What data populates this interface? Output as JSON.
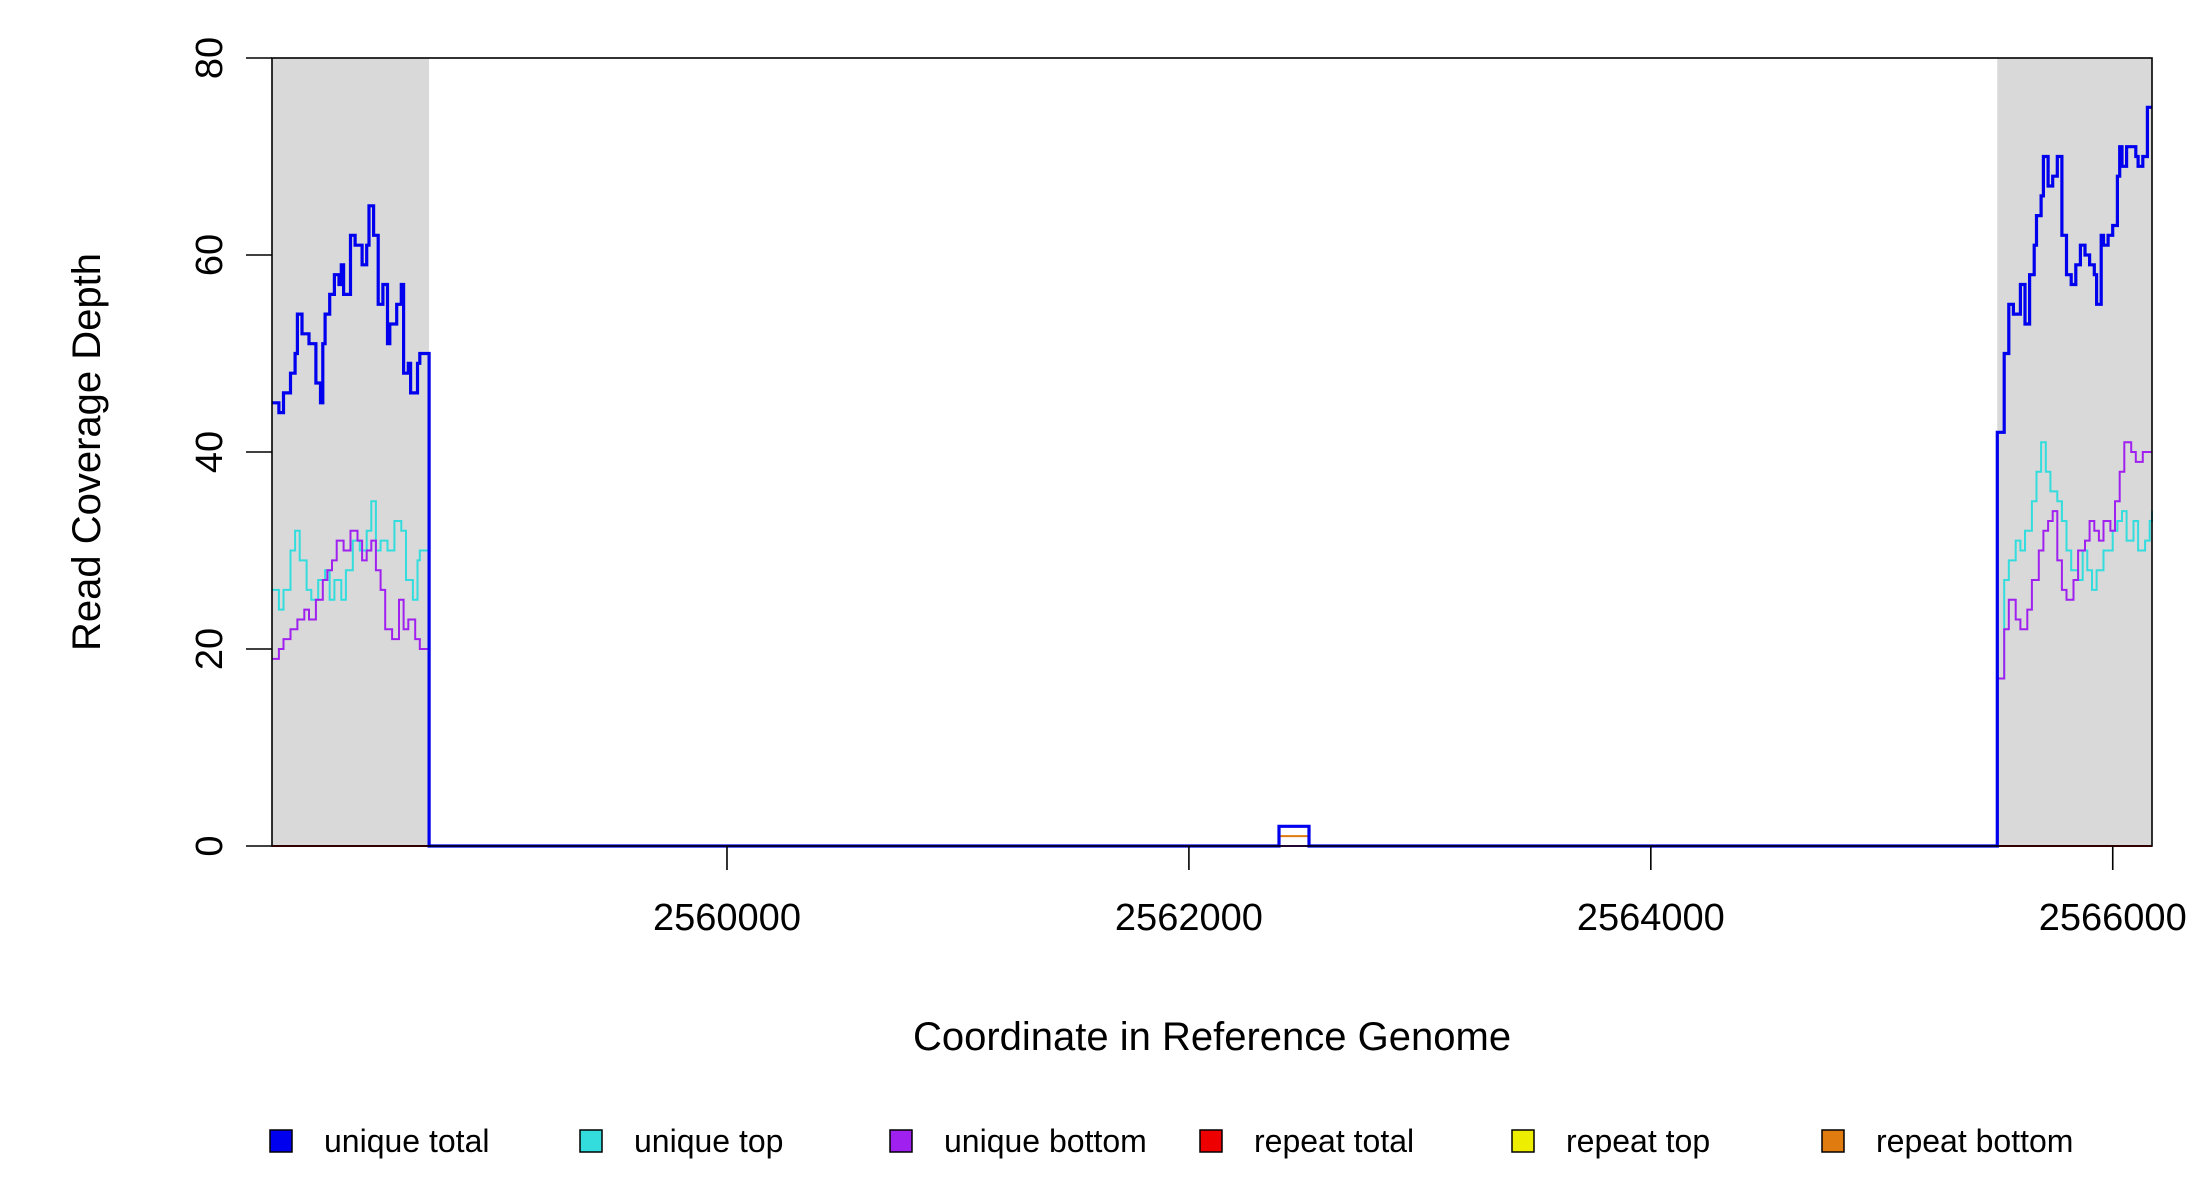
{
  "chart_data": {
    "type": "line",
    "title": "",
    "xlabel": "Coordinate in Reference Genome",
    "ylabel": "Read Coverage Depth",
    "xlim": [
      2558030,
      2566170
    ],
    "ylim": [
      0,
      80
    ],
    "x_ticks": [
      2560000,
      2562000,
      2564000,
      2566000
    ],
    "x_tick_labels": [
      "2560000",
      "2562000",
      "2564000",
      "2566000"
    ],
    "y_ticks": [
      0,
      20,
      40,
      60,
      80
    ],
    "y_tick_labels": [
      "0",
      "20",
      "40",
      "60",
      "80"
    ],
    "shaded_regions": [
      [
        2558030,
        2558710
      ],
      [
        2565500,
        2566170
      ]
    ],
    "shade_color": "#d9d9d9",
    "grid": false,
    "legend_position": "bottom",
    "series": [
      {
        "name": "unique total",
        "color": "#0000ee",
        "points": [
          [
            2558030,
            45
          ],
          [
            2558060,
            44
          ],
          [
            2558080,
            46
          ],
          [
            2558110,
            48
          ],
          [
            2558130,
            50
          ],
          [
            2558140,
            54
          ],
          [
            2558160,
            52
          ],
          [
            2558190,
            51
          ],
          [
            2558220,
            47
          ],
          [
            2558240,
            45
          ],
          [
            2558250,
            51
          ],
          [
            2558260,
            54
          ],
          [
            2558280,
            56
          ],
          [
            2558300,
            58
          ],
          [
            2558320,
            57
          ],
          [
            2558330,
            59
          ],
          [
            2558340,
            56
          ],
          [
            2558370,
            62
          ],
          [
            2558390,
            61
          ],
          [
            2558420,
            59
          ],
          [
            2558440,
            61
          ],
          [
            2558450,
            65
          ],
          [
            2558470,
            62
          ],
          [
            2558490,
            55
          ],
          [
            2558510,
            57
          ],
          [
            2558530,
            51
          ],
          [
            2558540,
            53
          ],
          [
            2558570,
            55
          ],
          [
            2558590,
            57
          ],
          [
            2558600,
            48
          ],
          [
            2558620,
            49
          ],
          [
            2558630,
            46
          ],
          [
            2558660,
            49
          ],
          [
            2558670,
            50
          ],
          [
            2558710,
            0
          ],
          [
            2562390,
            2
          ],
          [
            2562520,
            0
          ],
          [
            2565500,
            42
          ],
          [
            2565530,
            50
          ],
          [
            2565550,
            55
          ],
          [
            2565570,
            54
          ],
          [
            2565600,
            57
          ],
          [
            2565620,
            53
          ],
          [
            2565640,
            58
          ],
          [
            2565660,
            61
          ],
          [
            2565670,
            64
          ],
          [
            2565690,
            66
          ],
          [
            2565700,
            70
          ],
          [
            2565720,
            67
          ],
          [
            2565740,
            68
          ],
          [
            2565760,
            70
          ],
          [
            2565780,
            62
          ],
          [
            2565800,
            58
          ],
          [
            2565820,
            57
          ],
          [
            2565840,
            59
          ],
          [
            2565860,
            61
          ],
          [
            2565880,
            60
          ],
          [
            2565900,
            59
          ],
          [
            2565920,
            58
          ],
          [
            2565930,
            55
          ],
          [
            2565950,
            62
          ],
          [
            2565960,
            61
          ],
          [
            2565980,
            62
          ],
          [
            2566000,
            63
          ],
          [
            2566020,
            68
          ],
          [
            2566030,
            71
          ],
          [
            2566040,
            69
          ],
          [
            2566060,
            71
          ],
          [
            2566100,
            70
          ],
          [
            2566110,
            69
          ],
          [
            2566130,
            70
          ],
          [
            2566150,
            75
          ],
          [
            2566170,
            75
          ]
        ]
      },
      {
        "name": "unique top",
        "color": "#33dddd",
        "points": [
          [
            2558030,
            26
          ],
          [
            2558060,
            24
          ],
          [
            2558080,
            26
          ],
          [
            2558110,
            30
          ],
          [
            2558130,
            32
          ],
          [
            2558150,
            29
          ],
          [
            2558180,
            26
          ],
          [
            2558200,
            25
          ],
          [
            2558230,
            27
          ],
          [
            2558260,
            28
          ],
          [
            2558280,
            25
          ],
          [
            2558300,
            27
          ],
          [
            2558330,
            25
          ],
          [
            2558350,
            28
          ],
          [
            2558380,
            31
          ],
          [
            2558410,
            30
          ],
          [
            2558440,
            32
          ],
          [
            2558460,
            35
          ],
          [
            2558480,
            30
          ],
          [
            2558500,
            31
          ],
          [
            2558530,
            30
          ],
          [
            2558560,
            33
          ],
          [
            2558590,
            32
          ],
          [
            2558610,
            27
          ],
          [
            2558640,
            25
          ],
          [
            2558660,
            29
          ],
          [
            2558670,
            30
          ],
          [
            2558710,
            0
          ],
          [
            2565500,
            17
          ],
          [
            2565530,
            27
          ],
          [
            2565550,
            29
          ],
          [
            2565580,
            31
          ],
          [
            2565600,
            30
          ],
          [
            2565620,
            32
          ],
          [
            2565650,
            35
          ],
          [
            2565670,
            38
          ],
          [
            2565690,
            41
          ],
          [
            2565710,
            38
          ],
          [
            2565730,
            36
          ],
          [
            2565760,
            35
          ],
          [
            2565780,
            33
          ],
          [
            2565800,
            30
          ],
          [
            2565820,
            28
          ],
          [
            2565850,
            27
          ],
          [
            2565870,
            30
          ],
          [
            2565890,
            28
          ],
          [
            2565910,
            26
          ],
          [
            2565930,
            28
          ],
          [
            2565960,
            30
          ],
          [
            2565980,
            30
          ],
          [
            2566000,
            32
          ],
          [
            2566020,
            33
          ],
          [
            2566040,
            34
          ],
          [
            2566060,
            31
          ],
          [
            2566090,
            33
          ],
          [
            2566110,
            30
          ],
          [
            2566140,
            31
          ],
          [
            2566160,
            33
          ],
          [
            2566170,
            34
          ]
        ]
      },
      {
        "name": "unique bottom",
        "color": "#a020f0",
        "points": [
          [
            2558030,
            19
          ],
          [
            2558060,
            20
          ],
          [
            2558080,
            21
          ],
          [
            2558110,
            22
          ],
          [
            2558140,
            23
          ],
          [
            2558170,
            24
          ],
          [
            2558190,
            23
          ],
          [
            2558220,
            25
          ],
          [
            2558250,
            27
          ],
          [
            2558270,
            28
          ],
          [
            2558290,
            29
          ],
          [
            2558310,
            31
          ],
          [
            2558340,
            30
          ],
          [
            2558370,
            32
          ],
          [
            2558400,
            31
          ],
          [
            2558420,
            29
          ],
          [
            2558440,
            30
          ],
          [
            2558460,
            31
          ],
          [
            2558480,
            28
          ],
          [
            2558500,
            26
          ],
          [
            2558520,
            22
          ],
          [
            2558550,
            21
          ],
          [
            2558580,
            25
          ],
          [
            2558600,
            22
          ],
          [
            2558620,
            23
          ],
          [
            2558650,
            21
          ],
          [
            2558670,
            20
          ],
          [
            2558710,
            0
          ],
          [
            2565500,
            17
          ],
          [
            2565530,
            22
          ],
          [
            2565550,
            25
          ],
          [
            2565580,
            23
          ],
          [
            2565600,
            22
          ],
          [
            2565630,
            24
          ],
          [
            2565650,
            27
          ],
          [
            2565680,
            30
          ],
          [
            2565700,
            32
          ],
          [
            2565720,
            33
          ],
          [
            2565740,
            34
          ],
          [
            2565760,
            29
          ],
          [
            2565780,
            26
          ],
          [
            2565800,
            25
          ],
          [
            2565830,
            27
          ],
          [
            2565850,
            30
          ],
          [
            2565880,
            31
          ],
          [
            2565900,
            33
          ],
          [
            2565920,
            32
          ],
          [
            2565940,
            31
          ],
          [
            2565960,
            33
          ],
          [
            2565990,
            32
          ],
          [
            2566010,
            35
          ],
          [
            2566030,
            38
          ],
          [
            2566050,
            41
          ],
          [
            2566080,
            40
          ],
          [
            2566100,
            39
          ],
          [
            2566130,
            40
          ],
          [
            2566170,
            40
          ]
        ]
      },
      {
        "name": "repeat total",
        "color": "#ee0000",
        "points": [
          [
            2558030,
            0
          ],
          [
            2566170,
            0
          ]
        ]
      },
      {
        "name": "repeat top",
        "color": "#eeee00",
        "points": [
          [
            2558030,
            0
          ],
          [
            2566170,
            0
          ]
        ]
      },
      {
        "name": "repeat bottom",
        "color": "#e07b10",
        "points": [
          [
            2558030,
            0
          ],
          [
            2562390,
            0
          ],
          [
            2562390,
            1
          ],
          [
            2562520,
            1
          ],
          [
            2562520,
            0
          ],
          [
            2566170,
            0
          ]
        ]
      }
    ]
  }
}
